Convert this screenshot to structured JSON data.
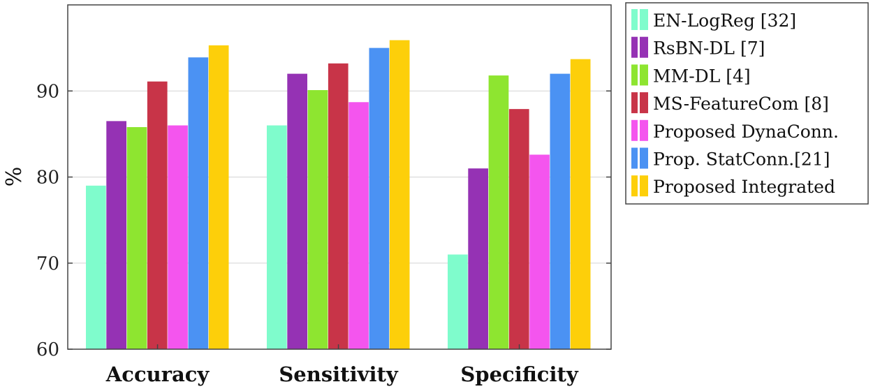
{
  "chart_data": {
    "type": "bar",
    "title": "",
    "xlabel": "",
    "ylabel": "%",
    "ylim": [
      60,
      100
    ],
    "yticks": [
      60,
      70,
      80,
      90
    ],
    "grid": true,
    "legend_position": "outside-right",
    "categories": [
      "Accuracy",
      "Sensitivity",
      "Specificity"
    ],
    "series": [
      {
        "name": "EN-LogReg [32]",
        "color": "#7ffccc",
        "values": [
          79,
          86,
          71
        ]
      },
      {
        "name": "RsBN-DL [7]",
        "color": "#9532b4",
        "values": [
          86.5,
          92,
          81
        ]
      },
      {
        "name": "MM-DL [4]",
        "color": "#8ee530",
        "values": [
          85.8,
          90.1,
          91.8
        ]
      },
      {
        "name": "MS-FeatureCom [8]",
        "color": "#c83448",
        "values": [
          91.1,
          93.2,
          87.9
        ]
      },
      {
        "name": "Proposed DynaConn.",
        "color": "#f455ee",
        "values": [
          86,
          88.7,
          82.6
        ]
      },
      {
        "name": "Prop. StatConn.[21]",
        "color": "#4b92f3",
        "values": [
          93.9,
          95,
          92
        ]
      },
      {
        "name": "Proposed Integrated",
        "color": "#fdcf0a",
        "values": [
          95.3,
          95.9,
          93.7
        ]
      }
    ]
  }
}
